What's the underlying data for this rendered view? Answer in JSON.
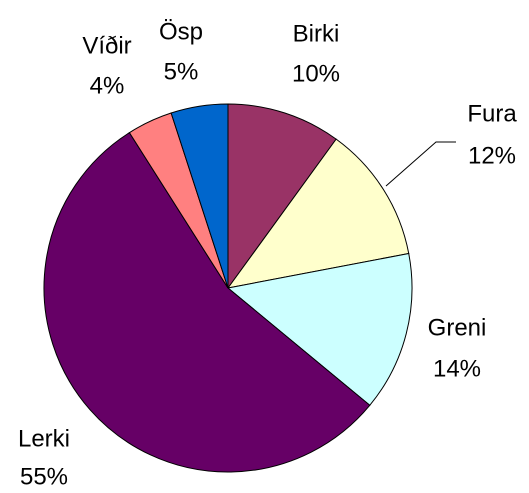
{
  "chart_data": {
    "type": "pie",
    "categories": [
      "Birki",
      "Fura",
      "Greni",
      "Lerki",
      "Víðir",
      "Ösp"
    ],
    "values": [
      10,
      12,
      14,
      55,
      4,
      5
    ],
    "value_labels": [
      "10%",
      "12%",
      "14%",
      "55%",
      "4%",
      "5%"
    ],
    "colors": [
      "#993366",
      "#ffffcc",
      "#ccffff",
      "#660066",
      "#ff8080",
      "#0066cc"
    ]
  }
}
